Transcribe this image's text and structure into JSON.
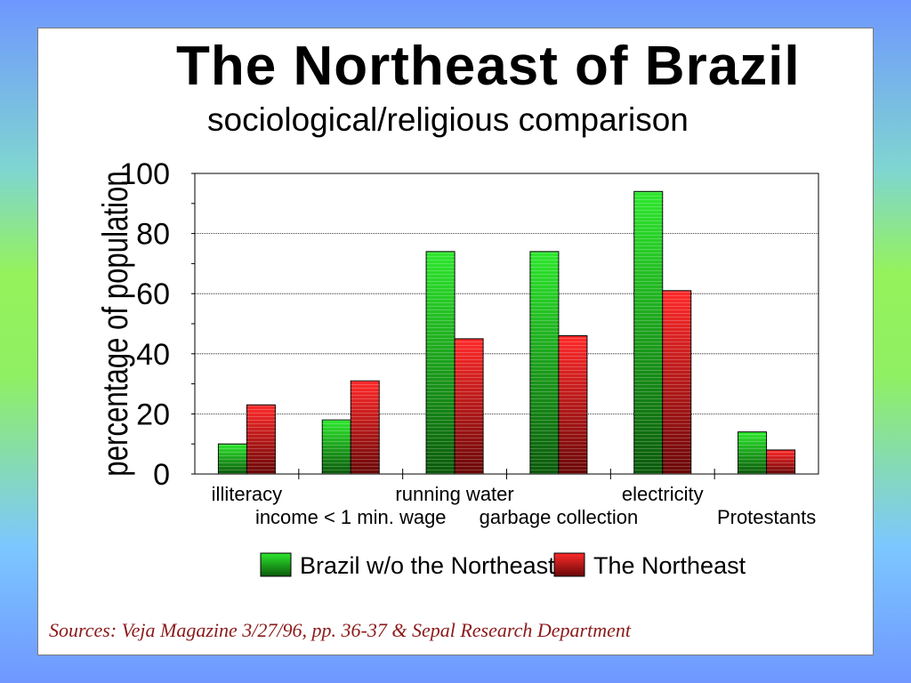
{
  "slide": {
    "title": "The Northeast of Brazil",
    "subtitle": "sociological/religious comparison",
    "source": "Sources: Veja Magazine 3/27/96, pp. 36-37 & Sepal Research Department"
  },
  "chart_data": {
    "type": "bar",
    "ylabel": "percentage of population",
    "ylim": [
      0,
      100
    ],
    "yticks": [
      0,
      20,
      40,
      60,
      80,
      100
    ],
    "grid": true,
    "legend_position": "bottom",
    "categories": [
      "illiteracy",
      "income < 1 min. wage",
      "running water",
      "garbage collection",
      "electricity",
      "Protestants"
    ],
    "series": [
      {
        "name": "Brazil w/o the Northeast",
        "values": [
          10,
          18,
          74,
          74,
          94,
          14
        ],
        "color": "#22c422"
      },
      {
        "name": "The Northeast",
        "values": [
          23,
          31,
          45,
          46,
          61,
          8
        ],
        "color": "#e02020"
      }
    ]
  }
}
